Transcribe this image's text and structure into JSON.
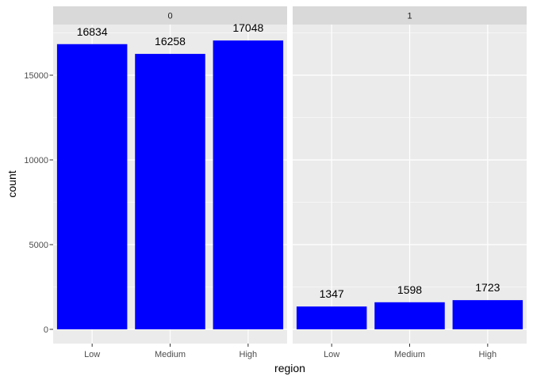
{
  "chart_data": {
    "type": "bar",
    "facet_by": "0/1 panels",
    "xlabel": "region",
    "ylabel": "count",
    "categories": [
      "Low",
      "Medium",
      "High"
    ],
    "ylim": [
      0,
      17500
    ],
    "yticks": [
      0,
      5000,
      10000,
      15000
    ],
    "grid": true,
    "bar_color": "#0000ff",
    "panel_background": "#ebebeb",
    "strip_background": "#d9d9d9",
    "panels": [
      {
        "label": "0",
        "values": [
          16834,
          16258,
          17048
        ]
      },
      {
        "label": "1",
        "values": [
          1347,
          1598,
          1723
        ]
      }
    ]
  }
}
